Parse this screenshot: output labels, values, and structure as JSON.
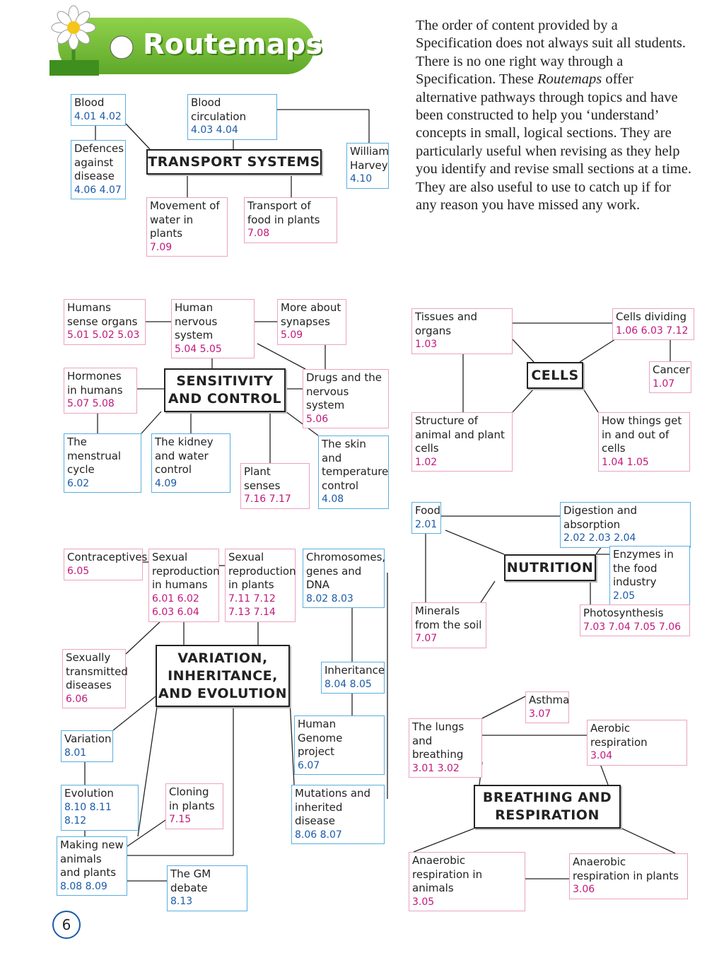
{
  "header": {
    "title": "Routemaps"
  },
  "intro": [
    "The order of content provided by a Specification does not always suit all students. There is no one right way through a Specification. These ",
    "Routemaps",
    " offer alternative pathways through topics and have been constructed to help you ‘understand’ concepts in small, logical sections. They are particularly useful when revising as they help you identify and revise small sections at a time. They are also useful to use to catch up if for any reason you have missed any work."
  ],
  "maps": [
    {
      "title": "TRANSPORT SYSTEMS",
      "nodes": [
        {
          "label": "Blood",
          "codes": "4.01 4.02"
        },
        {
          "label": "Blood circulation",
          "codes": "4.03 4.04"
        },
        {
          "label": "Defences against disease",
          "codes": "4.06 4.07"
        },
        {
          "label": "William Harvey",
          "codes": "4.10"
        },
        {
          "label": "Movement of water in plants",
          "codes": "7.09"
        },
        {
          "label": "Transport of food in plants",
          "codes": "7.08"
        }
      ]
    },
    {
      "title": "SENSITIVITY AND CONTROL",
      "nodes": [
        {
          "label": "Humans sense organs",
          "codes": "5.01 5.02 5.03"
        },
        {
          "label": "Human nervous system",
          "codes": "5.04 5.05"
        },
        {
          "label": "More about synapses",
          "codes": "5.09"
        },
        {
          "label": "Hormones in humans",
          "codes": "5.07 5.08"
        },
        {
          "label": "Drugs and the nervous system",
          "codes": "5.06"
        },
        {
          "label": "The menstrual cycle",
          "codes": "6.02"
        },
        {
          "label": "The kidney and water control",
          "codes": "4.09"
        },
        {
          "label": "Plant senses",
          "codes": "7.16 7.17"
        },
        {
          "label": "The skin and temperature control",
          "codes": "4.08"
        }
      ]
    },
    {
      "title": "CELLS",
      "nodes": [
        {
          "label": "Tissues and organs",
          "codes": "1.03"
        },
        {
          "label": "Cells dividing",
          "codes": "1.06 6.03 7.12"
        },
        {
          "label": "Cancer",
          "codes": "1.07"
        },
        {
          "label": "Structure of animal and plant cells",
          "codes": "1.02"
        },
        {
          "label": "How things get in and out of cells",
          "codes": "1.04 1.05"
        }
      ]
    },
    {
      "title": "NUTRITION",
      "nodes": [
        {
          "label": "Food",
          "codes": "2.01"
        },
        {
          "label": "Digestion and absorption",
          "codes": "2.02 2.03 2.04"
        },
        {
          "label": "Enzymes in the food industry",
          "codes": "2.05"
        },
        {
          "label": "Minerals from the soil",
          "codes": "7.07"
        },
        {
          "label": "Photosynthesis",
          "codes": "7.03 7.04 7.05 7.06"
        }
      ]
    },
    {
      "title": "BREATHING AND RESPIRATION",
      "nodes": [
        {
          "label": "Asthma",
          "codes": "3.07"
        },
        {
          "label": "The lungs and breathing",
          "codes": "3.01 3.02"
        },
        {
          "label": "Aerobic respiration",
          "codes": "3.04"
        },
        {
          "label": "Anaerobic respiration in animals",
          "codes": "3.05"
        },
        {
          "label": "Anaerobic respiration in plants",
          "codes": "3.06"
        }
      ]
    },
    {
      "title": "VARIATION, INHERITANCE, AND EVOLUTION",
      "nodes": [
        {
          "label": "Contraceptives",
          "codes": "6.05"
        },
        {
          "label": "Sexual reproduction in humans",
          "codes": "6.01 6.02 6.03 6.04"
        },
        {
          "label": "Sexual reproduction in plants",
          "codes": "7.11 7.12 7.13 7.14"
        },
        {
          "label": "Chromosomes, genes and DNA",
          "codes": "8.02 8.03"
        },
        {
          "label": "Sexually transmitted diseases",
          "codes": "6.06"
        },
        {
          "label": "Inheritance",
          "codes": "8.04 8.05"
        },
        {
          "label": "Variation",
          "codes": "8.01"
        },
        {
          "label": "Human Genome project",
          "codes": "6.07"
        },
        {
          "label": "Evolution",
          "codes": "8.10 8.11 8.12"
        },
        {
          "label": "Cloning in plants",
          "codes": "7.15"
        },
        {
          "label": "Mutations and inherited disease",
          "codes": "8.06 8.07"
        },
        {
          "label": "Making new animals and plants",
          "codes": "8.08 8.09"
        },
        {
          "label": "The GM debate",
          "codes": "8.13"
        }
      ]
    }
  ],
  "page_number": "6"
}
